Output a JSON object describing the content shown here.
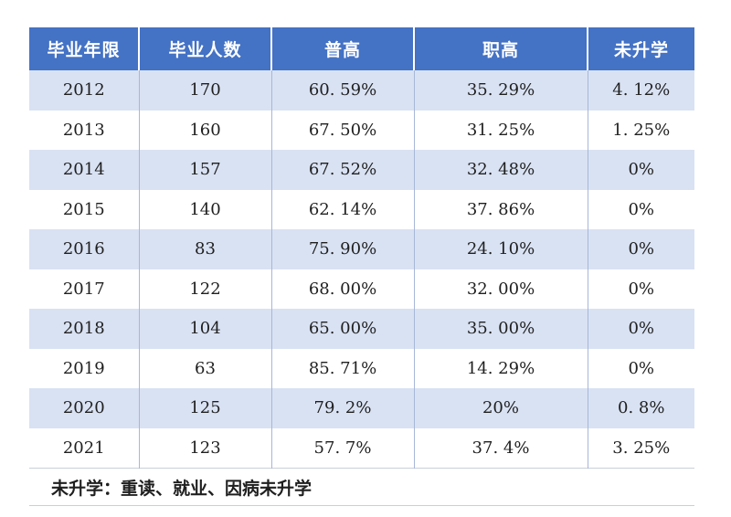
{
  "table": {
    "columns": [
      "毕业年限",
      "毕业人数",
      "普高",
      "职高",
      "未升学"
    ],
    "rows": [
      [
        "2012",
        "170",
        "60. 59%",
        "35. 29%",
        "4. 12%"
      ],
      [
        "2013",
        "160",
        "67. 50%",
        "31. 25%",
        "1. 25%"
      ],
      [
        "2014",
        "157",
        "67. 52%",
        "32. 48%",
        "0%"
      ],
      [
        "2015",
        "140",
        "62. 14%",
        "37. 86%",
        "0%"
      ],
      [
        "2016",
        "83",
        "75. 90%",
        "24. 10%",
        "0%"
      ],
      [
        "2017",
        "122",
        "68. 00%",
        "32. 00%",
        "0%"
      ],
      [
        "2018",
        "104",
        "65. 00%",
        "35. 00%",
        "0%"
      ],
      [
        "2019",
        "63",
        "85. 71%",
        "14. 29%",
        "0%"
      ],
      [
        "2020",
        "125",
        "79. 2%",
        "20%",
        "0. 8%"
      ],
      [
        "2021",
        "123",
        "57. 7%",
        "37. 4%",
        "3. 25%"
      ]
    ],
    "footnote": "未升学：重读、就业、因病未升学"
  },
  "colors": {
    "header_bg": "#4472C4",
    "header_text": "#FFFFFF",
    "band_row_bg": "#D9E2F3",
    "plain_row_bg": "#FFFFFF",
    "column_divider": "#A7B7D7",
    "footer_border": "#C9CFDA",
    "body_text": "#1F1F1F"
  }
}
